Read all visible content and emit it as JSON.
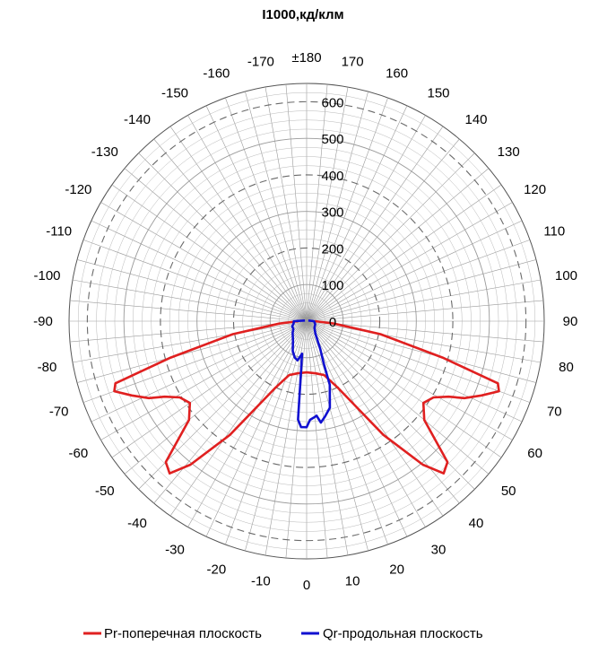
{
  "chart_data": {
    "type": "polar",
    "title": "I1000,кд/клм",
    "r_ticks": [
      0,
      100,
      200,
      300,
      400,
      500,
      600
    ],
    "r_max": 650,
    "angle_labels": [
      {
        "deg": 180,
        "text": "±180"
      },
      {
        "deg": 170,
        "text": "170"
      },
      {
        "deg": 160,
        "text": "160"
      },
      {
        "deg": 150,
        "text": "150"
      },
      {
        "deg": 140,
        "text": "140"
      },
      {
        "deg": 130,
        "text": "130"
      },
      {
        "deg": 120,
        "text": "120"
      },
      {
        "deg": 110,
        "text": "110"
      },
      {
        "deg": 100,
        "text": "100"
      },
      {
        "deg": 90,
        "text": "90"
      },
      {
        "deg": 80,
        "text": "80"
      },
      {
        "deg": 70,
        "text": "70"
      },
      {
        "deg": 60,
        "text": "60"
      },
      {
        "deg": 50,
        "text": "50"
      },
      {
        "deg": 40,
        "text": "40"
      },
      {
        "deg": 30,
        "text": "30"
      },
      {
        "deg": 20,
        "text": "20"
      },
      {
        "deg": 10,
        "text": "10"
      },
      {
        "deg": 0,
        "text": "0"
      },
      {
        "deg": -10,
        "text": "-10"
      },
      {
        "deg": -20,
        "text": "-20"
      },
      {
        "deg": -30,
        "text": "-30"
      },
      {
        "deg": -40,
        "text": "-40"
      },
      {
        "deg": -50,
        "text": "-50"
      },
      {
        "deg": -60,
        "text": "-60"
      },
      {
        "deg": -70,
        "text": "-70"
      },
      {
        "deg": -80,
        "text": "-80"
      },
      {
        "deg": -90,
        "text": "-90"
      },
      {
        "deg": -100,
        "text": "-100"
      },
      {
        "deg": -110,
        "text": "-110"
      },
      {
        "deg": -120,
        "text": "-120"
      },
      {
        "deg": -130,
        "text": "-130"
      },
      {
        "deg": -140,
        "text": "-140"
      },
      {
        "deg": -150,
        "text": "-150"
      },
      {
        "deg": -160,
        "text": "-160"
      },
      {
        "deg": -170,
        "text": "-170"
      }
    ],
    "grid": true,
    "legend_position": "bottom",
    "series": [
      {
        "name": "Pr-поперечная плоскость",
        "color": "#e02020",
        "points": [
          {
            "angle": -90,
            "r": 22
          },
          {
            "angle": -85,
            "r": 75
          },
          {
            "angle": -80,
            "r": 205
          },
          {
            "angle": -75,
            "r": 385
          },
          {
            "angle": -72,
            "r": 550
          },
          {
            "angle": -70,
            "r": 560
          },
          {
            "angle": -67,
            "r": 520
          },
          {
            "angle": -64,
            "r": 480
          },
          {
            "angle": -62,
            "r": 440
          },
          {
            "angle": -59,
            "r": 405
          },
          {
            "angle": -55,
            "r": 390
          },
          {
            "angle": -50,
            "r": 420
          },
          {
            "angle": -45,
            "r": 545
          },
          {
            "angle": -42,
            "r": 560
          },
          {
            "angle": -39,
            "r": 505
          },
          {
            "angle": -34,
            "r": 375
          },
          {
            "angle": -25,
            "r": 200
          },
          {
            "angle": -18,
            "r": 155
          },
          {
            "angle": -10,
            "r": 145
          },
          {
            "angle": 0,
            "r": 140
          },
          {
            "angle": 10,
            "r": 145
          },
          {
            "angle": 18,
            "r": 155
          },
          {
            "angle": 25,
            "r": 200
          },
          {
            "angle": 34,
            "r": 375
          },
          {
            "angle": 39,
            "r": 505
          },
          {
            "angle": 42,
            "r": 560
          },
          {
            "angle": 45,
            "r": 545
          },
          {
            "angle": 50,
            "r": 420
          },
          {
            "angle": 55,
            "r": 390
          },
          {
            "angle": 59,
            "r": 405
          },
          {
            "angle": 62,
            "r": 440
          },
          {
            "angle": 64,
            "r": 480
          },
          {
            "angle": 67,
            "r": 520
          },
          {
            "angle": 70,
            "r": 560
          },
          {
            "angle": 72,
            "r": 550
          },
          {
            "angle": 75,
            "r": 385
          },
          {
            "angle": 80,
            "r": 205
          },
          {
            "angle": 85,
            "r": 75
          },
          {
            "angle": 90,
            "r": 22
          }
        ]
      },
      {
        "name": "Qr-продольная плоскость",
        "color": "#1010d0",
        "points": [
          {
            "angle": -110,
            "r": 5
          },
          {
            "angle": -90,
            "r": 35
          },
          {
            "angle": -80,
            "r": 36
          },
          {
            "angle": -70,
            "r": 42
          },
          {
            "angle": -60,
            "r": 42
          },
          {
            "angle": -50,
            "r": 50
          },
          {
            "angle": -35,
            "r": 65
          },
          {
            "angle": -25,
            "r": 90
          },
          {
            "angle": -18,
            "r": 105
          },
          {
            "angle": -13,
            "r": 110
          },
          {
            "angle": -8,
            "r": 90
          },
          {
            "angle": -6,
            "r": 160
          },
          {
            "angle": -5,
            "r": 270
          },
          {
            "angle": -3,
            "r": 290
          },
          {
            "angle": 0,
            "r": 290
          },
          {
            "angle": 2,
            "r": 270
          },
          {
            "angle": 4,
            "r": 265
          },
          {
            "angle": 6,
            "r": 260
          },
          {
            "angle": 8,
            "r": 280
          },
          {
            "angle": 11,
            "r": 265
          },
          {
            "angle": 15,
            "r": 245
          },
          {
            "angle": 20,
            "r": 185
          },
          {
            "angle": 22,
            "r": 125
          },
          {
            "angle": 26,
            "r": 85
          },
          {
            "angle": 35,
            "r": 42
          },
          {
            "angle": 50,
            "r": 28
          },
          {
            "angle": 70,
            "r": 25
          },
          {
            "angle": 90,
            "r": 20
          },
          {
            "angle": 110,
            "r": 5
          }
        ]
      }
    ]
  }
}
